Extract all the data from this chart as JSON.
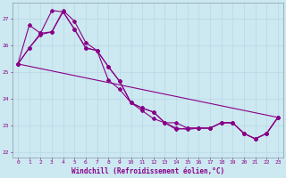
{
  "xlabel": "Windchill (Refroidissement éolien,°C)",
  "background_color": "#cce8f0",
  "grid_color": "#aaccdd",
  "line_color": "#880088",
  "xlim": [
    -0.5,
    23.5
  ],
  "ylim": [
    21.8,
    27.6
  ],
  "yticks": [
    22,
    23,
    24,
    25,
    26,
    27
  ],
  "xticks": [
    0,
    1,
    2,
    3,
    4,
    5,
    6,
    7,
    8,
    9,
    10,
    11,
    12,
    13,
    14,
    15,
    16,
    17,
    18,
    19,
    20,
    21,
    22,
    23
  ],
  "line1_x": [
    0,
    1,
    2,
    3,
    4,
    5,
    6,
    7,
    8,
    9,
    10,
    11,
    12,
    13,
    14,
    15,
    16,
    17,
    18,
    19,
    20,
    21,
    22,
    23
  ],
  "line1_y": [
    25.3,
    25.9,
    26.4,
    26.5,
    27.3,
    26.9,
    26.1,
    25.8,
    25.2,
    24.65,
    23.85,
    23.65,
    23.5,
    23.1,
    22.9,
    22.85,
    22.9,
    22.9,
    23.1,
    23.1,
    22.7,
    22.5,
    22.7,
    23.3
  ],
  "line2_x": [
    0,
    1,
    2,
    3,
    4,
    5,
    6,
    7,
    8,
    9,
    10,
    11,
    12,
    13,
    14,
    15,
    16,
    17,
    18,
    19,
    20,
    21,
    22,
    23
  ],
  "line2_y": [
    25.3,
    26.75,
    26.45,
    27.3,
    27.25,
    26.6,
    25.9,
    25.8,
    24.7,
    24.35,
    23.85,
    23.55,
    23.25,
    23.1,
    23.1,
    22.9,
    22.9,
    22.9,
    23.1,
    23.1,
    22.7,
    22.5,
    22.7,
    23.3
  ],
  "line3_x": [
    0,
    1,
    2,
    3,
    4,
    5,
    6,
    7,
    8,
    9,
    10,
    11,
    12,
    13,
    14,
    15,
    16,
    17,
    18,
    19,
    20,
    21,
    22,
    23
  ],
  "line3_y": [
    25.3,
    25.9,
    26.45,
    26.5,
    27.25,
    26.6,
    25.9,
    25.8,
    25.2,
    24.65,
    23.85,
    23.65,
    23.5,
    23.1,
    22.85,
    22.9,
    22.9,
    22.9,
    23.1,
    23.1,
    22.7,
    22.5,
    22.7,
    23.3
  ],
  "line4_x": [
    0,
    23
  ],
  "line4_y": [
    25.3,
    23.3
  ],
  "marker": "D",
  "markersize": 2.0,
  "linewidth": 0.8,
  "tick_fontsize": 4.5,
  "label_fontsize": 5.5
}
